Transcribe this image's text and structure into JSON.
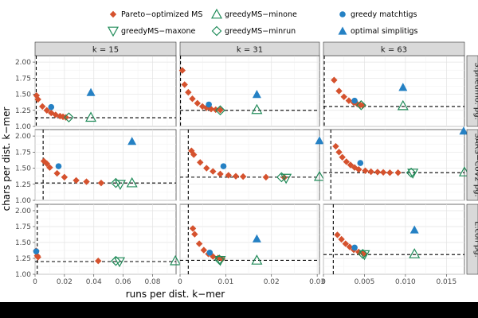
{
  "chart_data": {
    "type": "scatter",
    "xlabel": "runs per dist. k−mer",
    "ylabel": "chars per dist. k−mer",
    "ylim": [
      1.0,
      2.1
    ],
    "yticks": [
      "1.00",
      "1.25",
      "1.50",
      "1.75",
      "2.00"
    ],
    "columns": [
      {
        "label": "k = 15",
        "xlim": [
          0,
          0.096
        ],
        "ticks": [
          "0",
          "0.02",
          "0.04",
          "0.06",
          "0.08"
        ]
      },
      {
        "label": "k = 31",
        "xlim": [
          0,
          0.0305
        ],
        "ticks": [
          "0",
          "0.01",
          "0.02",
          "0.03"
        ]
      },
      {
        "label": "k = 63",
        "xlim": [
          0,
          0.0172
        ],
        "ticks": [
          "0",
          "0.005",
          "0.010",
          "0.015"
        ]
      }
    ],
    "rows": [
      {
        "label": "S.pneumo. pg."
      },
      {
        "label": "SARS−CoV2 pg."
      },
      {
        "label": "E.coli pg."
      }
    ],
    "legend": [
      {
        "key": "pareto",
        "label": "Pareto−optimized MS",
        "color": "#d5522e"
      },
      {
        "key": "minone",
        "label": "greedyMS−minone",
        "color": "#218c5a"
      },
      {
        "key": "greedy",
        "label": "greedy matchtigs",
        "color": "#2581c4"
      },
      {
        "key": "maxone",
        "label": "greedyMS−maxone",
        "color": "#218c5a"
      },
      {
        "key": "minrun",
        "label": "greedyMS−minrun",
        "color": "#218c5a"
      },
      {
        "key": "simplitig",
        "label": "optimal simplitigs",
        "color": "#2581c4"
      }
    ],
    "panels": [
      {
        "row": 0,
        "col": 0,
        "vline": 0.0008,
        "hline": 1.135,
        "pareto": [
          [
            0.001,
            1.48
          ],
          [
            0.002,
            1.42
          ],
          [
            0.005,
            1.31
          ],
          [
            0.008,
            1.25
          ],
          [
            0.011,
            1.21
          ],
          [
            0.014,
            1.18
          ],
          [
            0.017,
            1.16
          ],
          [
            0.019,
            1.15
          ],
          [
            0.021,
            1.14
          ]
        ],
        "greedy": [
          [
            0.011,
            1.3
          ]
        ],
        "minone": [
          [
            0.038,
            1.14
          ]
        ],
        "maxone": [],
        "minrun": [
          [
            0.023,
            1.14
          ]
        ],
        "simplitig": [
          [
            0.038,
            1.53
          ]
        ]
      },
      {
        "row": 0,
        "col": 1,
        "vline": 0.0001,
        "hline": 1.25,
        "pareto": [
          [
            0.0005,
            1.87
          ],
          [
            0.001,
            1.65
          ],
          [
            0.0018,
            1.53
          ],
          [
            0.0027,
            1.43
          ],
          [
            0.0038,
            1.36
          ],
          [
            0.0049,
            1.31
          ],
          [
            0.0058,
            1.29
          ],
          [
            0.0068,
            1.27
          ],
          [
            0.0078,
            1.26
          ],
          [
            0.0088,
            1.255
          ]
        ],
        "greedy": [
          [
            0.0063,
            1.34
          ]
        ],
        "minone": [
          [
            0.0168,
            1.26
          ]
        ],
        "maxone": [],
        "minrun": [
          [
            0.0088,
            1.25
          ]
        ],
        "simplitig": [
          [
            0.0168,
            1.5
          ]
        ]
      },
      {
        "row": 0,
        "col": 2,
        "vline": 0.0001,
        "hline": 1.31,
        "pareto": [
          [
            0.0013,
            1.72
          ],
          [
            0.0019,
            1.55
          ],
          [
            0.0025,
            1.46
          ],
          [
            0.0031,
            1.4
          ],
          [
            0.0037,
            1.37
          ],
          [
            0.0041,
            1.35
          ],
          [
            0.0045,
            1.335
          ],
          [
            0.0048,
            1.325
          ]
        ],
        "greedy": [
          [
            0.0038,
            1.4
          ]
        ],
        "minone": [
          [
            0.0097,
            1.32
          ]
        ],
        "maxone": [],
        "minrun": [
          [
            0.0046,
            1.33
          ]
        ],
        "simplitig": [
          [
            0.0097,
            1.61
          ]
        ]
      },
      {
        "row": 1,
        "col": 0,
        "vline": 0.0055,
        "hline": 1.27,
        "pareto": [
          [
            0.006,
            1.61
          ],
          [
            0.008,
            1.57
          ],
          [
            0.01,
            1.51
          ],
          [
            0.015,
            1.42
          ],
          [
            0.02,
            1.36
          ],
          [
            0.028,
            1.31
          ],
          [
            0.035,
            1.29
          ],
          [
            0.045,
            1.27
          ]
        ],
        "greedy": [
          [
            0.016,
            1.53
          ]
        ],
        "minone": [
          [
            0.066,
            1.27
          ]
        ],
        "maxone": [
          [
            0.058,
            1.25
          ]
        ],
        "minrun": [
          [
            0.055,
            1.27
          ]
        ],
        "simplitig": [
          [
            0.066,
            1.92
          ]
        ]
      },
      {
        "row": 1,
        "col": 1,
        "vline": 0.0018,
        "hline": 1.36,
        "pareto": [
          [
            0.0025,
            1.77
          ],
          [
            0.003,
            1.71
          ],
          [
            0.0044,
            1.59
          ],
          [
            0.0058,
            1.5
          ],
          [
            0.0072,
            1.45
          ],
          [
            0.0088,
            1.41
          ],
          [
            0.0106,
            1.39
          ],
          [
            0.0122,
            1.375
          ],
          [
            0.0138,
            1.37
          ],
          [
            0.0188,
            1.36
          ],
          [
            0.0228,
            1.355
          ]
        ],
        "greedy": [
          [
            0.0095,
            1.53
          ]
        ],
        "minone": [
          [
            0.0305,
            1.37
          ]
        ],
        "maxone": [
          [
            0.0232,
            1.345
          ]
        ],
        "minrun": [
          [
            0.0222,
            1.36
          ]
        ],
        "simplitig": [
          [
            0.0305,
            1.93
          ]
        ]
      },
      {
        "row": 1,
        "col": 2,
        "vline": 0.0009,
        "hline": 1.43,
        "pareto": [
          [
            0.0015,
            1.84
          ],
          [
            0.0019,
            1.75
          ],
          [
            0.0023,
            1.67
          ],
          [
            0.0028,
            1.6
          ],
          [
            0.0033,
            1.55
          ],
          [
            0.0038,
            1.51
          ],
          [
            0.0043,
            1.48
          ],
          [
            0.0051,
            1.46
          ],
          [
            0.0058,
            1.445
          ],
          [
            0.0066,
            1.44
          ],
          [
            0.0073,
            1.435
          ],
          [
            0.0081,
            1.43
          ],
          [
            0.0091,
            1.43
          ]
        ],
        "greedy": [
          [
            0.0045,
            1.58
          ]
        ],
        "minone": [
          [
            0.0172,
            1.44
          ]
        ],
        "maxone": [
          [
            0.0109,
            1.425
          ]
        ],
        "minrun": [
          [
            0.0107,
            1.43
          ]
        ],
        "simplitig": [
          [
            0.0171,
            2.08
          ]
        ]
      },
      {
        "row": 2,
        "col": 0,
        "vline": 0.0015,
        "hline": 1.2,
        "pareto": [
          [
            0.0008,
            1.37
          ],
          [
            0.0015,
            1.29
          ],
          [
            0.002,
            1.27
          ],
          [
            0.043,
            1.21
          ]
        ],
        "greedy": [
          [
            0.0008,
            1.36
          ]
        ],
        "minone": [
          [
            0.0955,
            1.21
          ]
        ],
        "maxone": [
          [
            0.0575,
            1.2
          ]
        ],
        "minrun": [
          [
            0.055,
            1.21
          ]
        ],
        "simplitig": []
      },
      {
        "row": 2,
        "col": 1,
        "vline": 0.0018,
        "hline": 1.22,
        "pareto": [
          [
            0.0028,
            1.72
          ],
          [
            0.0032,
            1.63
          ],
          [
            0.0042,
            1.48
          ],
          [
            0.0052,
            1.38
          ],
          [
            0.0062,
            1.32
          ],
          [
            0.0072,
            1.28
          ],
          [
            0.0083,
            1.255
          ],
          [
            0.0092,
            1.24
          ]
        ],
        "greedy": [
          [
            0.0065,
            1.34
          ]
        ],
        "minone": [
          [
            0.0168,
            1.22
          ]
        ],
        "maxone": [
          [
            0.0088,
            1.22
          ]
        ],
        "minrun": [
          [
            0.0086,
            1.23
          ]
        ],
        "simplitig": [
          [
            0.0168,
            1.56
          ]
        ]
      },
      {
        "row": 2,
        "col": 2,
        "vline": 0.0012,
        "hline": 1.31,
        "pareto": [
          [
            0.0017,
            1.62
          ],
          [
            0.0022,
            1.55
          ],
          [
            0.0027,
            1.48
          ],
          [
            0.0032,
            1.43
          ],
          [
            0.0037,
            1.385
          ],
          [
            0.0043,
            1.35
          ],
          [
            0.0048,
            1.33
          ],
          [
            0.005,
            1.32
          ]
        ],
        "greedy": [
          [
            0.0038,
            1.42
          ]
        ],
        "minone": [
          [
            0.0111,
            1.32
          ]
        ],
        "maxone": [
          [
            0.005,
            1.31
          ]
        ],
        "minrun": [
          [
            0.0048,
            1.32
          ]
        ],
        "simplitig": [
          [
            0.0111,
            1.7
          ]
        ]
      }
    ]
  }
}
